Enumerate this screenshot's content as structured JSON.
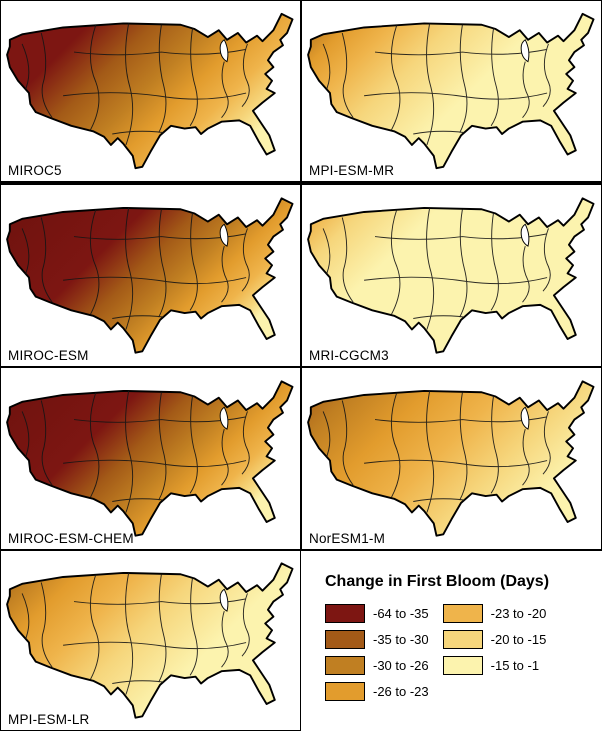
{
  "legend": {
    "title": "Change in First Bloom (Days)",
    "columns": [
      {
        "items": [
          {
            "label": "-64 to -35",
            "color": "#7D1612"
          },
          {
            "label": "-35 to -30",
            "color": "#A35A17"
          },
          {
            "label": "-30 to -26",
            "color": "#C07F22"
          },
          {
            "label": "-26 to -23",
            "color": "#E29C2D"
          }
        ]
      },
      {
        "items": [
          {
            "label": "-23 to -20",
            "color": "#EFB44B"
          },
          {
            "label": "-20 to -15",
            "color": "#F6D67C"
          },
          {
            "label": "-15 to -1",
            "color": "#FCF3AE"
          }
        ]
      }
    ]
  },
  "map_outline_color": "#000000",
  "panels": [
    {
      "label": "MIROC5",
      "stops": [
        [
          0,
          "#7D1612"
        ],
        [
          0.25,
          "#7D1612"
        ],
        [
          0.42,
          "#A35A17"
        ],
        [
          0.58,
          "#C07F22"
        ],
        [
          0.7,
          "#E29C2D"
        ],
        [
          0.82,
          "#EFB44B"
        ],
        [
          0.92,
          "#F6D67C"
        ],
        [
          1,
          "#FCF3AE"
        ]
      ]
    },
    {
      "label": "MPI-ESM-MR",
      "stops": [
        [
          0,
          "#A35A17"
        ],
        [
          0.06,
          "#C07F22"
        ],
        [
          0.14,
          "#E29C2D"
        ],
        [
          0.26,
          "#EFB44B"
        ],
        [
          0.42,
          "#F6D67C"
        ],
        [
          0.65,
          "#FCF3AE"
        ],
        [
          1,
          "#FCF3AE"
        ]
      ]
    },
    {
      "label": "MIROC-ESM",
      "stops": [
        [
          0,
          "#6E120E"
        ],
        [
          0.4,
          "#7D1612"
        ],
        [
          0.55,
          "#A35A17"
        ],
        [
          0.68,
          "#C07F22"
        ],
        [
          0.78,
          "#E29C2D"
        ],
        [
          0.88,
          "#EFB44B"
        ],
        [
          0.95,
          "#F6D67C"
        ],
        [
          1,
          "#FCF3AE"
        ]
      ]
    },
    {
      "label": "MRI-CGCM3",
      "stops": [
        [
          0,
          "#E29C2D"
        ],
        [
          0.07,
          "#EFB44B"
        ],
        [
          0.18,
          "#F6D67C"
        ],
        [
          0.38,
          "#FCF3AE"
        ],
        [
          1,
          "#FCF3AE"
        ]
      ]
    },
    {
      "label": "MIROC-ESM-CHEM",
      "stops": [
        [
          0,
          "#6E120E"
        ],
        [
          0.38,
          "#7D1612"
        ],
        [
          0.53,
          "#A35A17"
        ],
        [
          0.66,
          "#C07F22"
        ],
        [
          0.77,
          "#E29C2D"
        ],
        [
          0.87,
          "#EFB44B"
        ],
        [
          0.94,
          "#F6D67C"
        ],
        [
          1,
          "#FCF3AE"
        ]
      ]
    },
    {
      "label": "NorESM1-M",
      "stops": [
        [
          0,
          "#A35A17"
        ],
        [
          0.15,
          "#C07F22"
        ],
        [
          0.35,
          "#E29C2D"
        ],
        [
          0.55,
          "#EFB44B"
        ],
        [
          0.75,
          "#F6D67C"
        ],
        [
          0.95,
          "#FCF3AE"
        ],
        [
          1,
          "#FCF3AE"
        ]
      ]
    },
    {
      "label": "MPI-ESM-LR",
      "stops": [
        [
          0,
          "#A35A17"
        ],
        [
          0.1,
          "#C07F22"
        ],
        [
          0.22,
          "#E29C2D"
        ],
        [
          0.38,
          "#EFB44B"
        ],
        [
          0.55,
          "#F6D67C"
        ],
        [
          0.78,
          "#FCF3AE"
        ],
        [
          1,
          "#FCF3AE"
        ]
      ]
    }
  ]
}
